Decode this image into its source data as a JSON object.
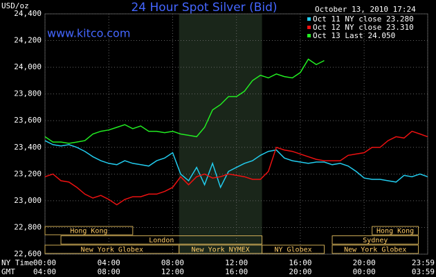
{
  "chart_data": {
    "type": "line",
    "title": "24 Hour Spot Silver (Bid)",
    "y_axis_label": "USD/oz",
    "timestamp": "October 13, 2010 17:24",
    "watermark": "www.kitco.com",
    "x_axis_label": "NY Time",
    "x2_axis_label": "GMT",
    "x": [
      0,
      0.5,
      1,
      1.5,
      2,
      2.5,
      3,
      3.5,
      4,
      4.5,
      5,
      5.5,
      6,
      6.5,
      7,
      7.5,
      8,
      8.5,
      9,
      9.5,
      10,
      10.5,
      11,
      11.5,
      12,
      12.5,
      13,
      13.5,
      14,
      14.5,
      15,
      15.5,
      16,
      16.5,
      17,
      17.5,
      18,
      18.5,
      19,
      19.5,
      20,
      20.5,
      21,
      21.5,
      22,
      22.5,
      23,
      23.5,
      23.98
    ],
    "series": [
      {
        "name": "Oct 11 NY close 23.280",
        "color": "#22ccee",
        "values": [
          23.45,
          23.42,
          23.41,
          23.42,
          23.4,
          23.37,
          23.33,
          23.3,
          23.28,
          23.27,
          23.3,
          23.28,
          23.27,
          23.26,
          23.3,
          23.32,
          23.36,
          23.2,
          23.15,
          23.25,
          23.12,
          23.28,
          23.1,
          23.22,
          23.25,
          23.28,
          23.3,
          23.34,
          23.37,
          23.38,
          23.32,
          23.3,
          23.29,
          23.28,
          23.29,
          23.29,
          23.27,
          23.28,
          23.26,
          23.22,
          23.17,
          23.16,
          23.16,
          23.15,
          23.14,
          23.19,
          23.18,
          23.2,
          23.18
        ]
      },
      {
        "name": "Oct 12 NY close 23.310",
        "color": "#ee1111",
        "values": [
          23.18,
          23.2,
          23.15,
          23.14,
          23.1,
          23.05,
          23.02,
          23.04,
          23.01,
          22.97,
          23.01,
          23.03,
          23.03,
          23.05,
          23.05,
          23.07,
          23.1,
          23.18,
          23.12,
          23.18,
          23.2,
          23.17,
          23.18,
          23.2,
          23.19,
          23.18,
          23.16,
          23.16,
          23.22,
          23.4,
          23.38,
          23.37,
          23.35,
          23.33,
          23.31,
          23.3,
          23.3,
          23.3,
          23.34,
          23.35,
          23.36,
          23.4,
          23.4,
          23.45,
          23.48,
          23.47,
          23.52,
          23.5,
          23.48
        ]
      },
      {
        "name": "Oct 13 Last 24.050",
        "color": "#22ee22",
        "values": [
          23.48,
          23.44,
          23.44,
          23.43,
          23.44,
          23.45,
          23.5,
          23.52,
          23.53,
          23.55,
          23.57,
          23.54,
          23.56,
          23.52,
          23.52,
          23.51,
          23.52,
          23.5,
          23.49,
          23.48,
          23.55,
          23.68,
          23.72,
          23.78,
          23.78,
          23.82,
          23.9,
          23.94,
          23.92,
          23.95,
          23.93,
          23.92,
          23.96,
          24.06,
          24.02,
          24.05,
          null,
          null,
          null,
          null,
          null,
          null,
          null,
          null,
          null,
          null,
          null,
          null,
          null
        ]
      }
    ],
    "xlim": [
      0,
      23.983
    ],
    "xticks": [
      {
        "value": 0,
        "label": "00:00"
      },
      {
        "value": 4,
        "label": "04:00"
      },
      {
        "value": 8,
        "label": "08:00"
      },
      {
        "value": 12,
        "label": "12:00"
      },
      {
        "value": 16,
        "label": "16:00"
      },
      {
        "value": 20,
        "label": "20:00"
      },
      {
        "value": 23.983,
        "label": "23:59"
      }
    ],
    "x2ticks": [
      "04:00",
      "08:00",
      "12:00",
      "16:00",
      "20:00",
      "00:00",
      "03:59"
    ],
    "ylim": [
      22.6,
      24.4
    ],
    "yticks": [
      {
        "value": 22.6,
        "label": "22,600"
      },
      {
        "value": 22.8,
        "label": "22,800"
      },
      {
        "value": 23.0,
        "label": "23,000"
      },
      {
        "value": 23.2,
        "label": "23,200"
      },
      {
        "value": 23.4,
        "label": "23,400"
      },
      {
        "value": 23.6,
        "label": "23,600"
      },
      {
        "value": 23.8,
        "label": "23,800"
      },
      {
        "value": 24.0,
        "label": "24,000"
      },
      {
        "value": 24.2,
        "label": "24,200"
      },
      {
        "value": 24.4,
        "label": "24,400"
      }
    ],
    "grid": true,
    "sessions": [
      {
        "label": "Hong Kong",
        "start": 0,
        "end": 5.5
      },
      {
        "label": "Hong Kong",
        "start": 20.5,
        "end": 23.4
      },
      {
        "label": "London",
        "start": 1,
        "end": 13.6
      },
      {
        "label": "Sydney",
        "start": 18,
        "end": 23.4
      },
      {
        "label": "New York Globex",
        "start": 0,
        "end": 8.4
      },
      {
        "label": "New York NYMEX",
        "start": 8.4,
        "end": 13.6
      },
      {
        "label": "NY Globex",
        "start": 13.6,
        "end": 17.5
      },
      {
        "label": "New York Globex",
        "start": 18,
        "end": 23.4
      }
    ],
    "highlight_session": 5
  }
}
